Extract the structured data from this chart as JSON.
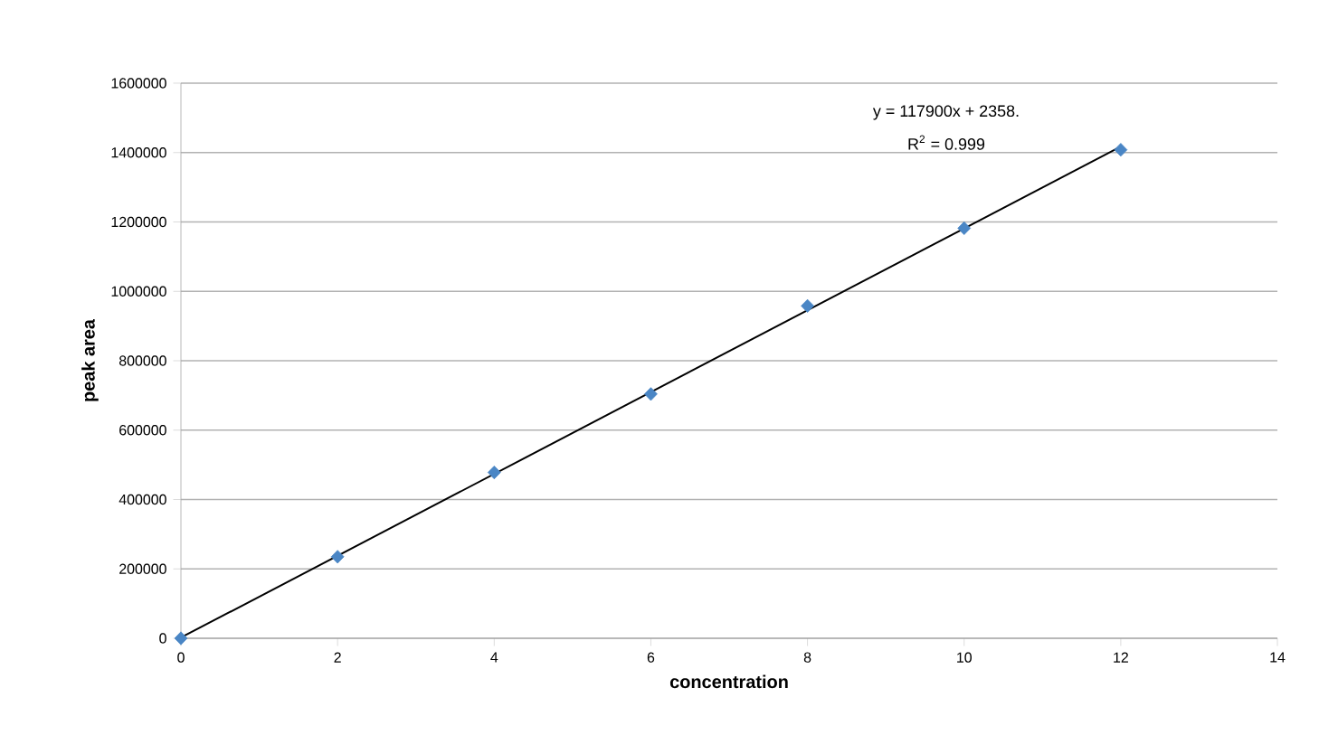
{
  "chart_data": {
    "type": "scatter",
    "xlabel": "concentration",
    "ylabel": "peak area",
    "series": [
      {
        "marker": "diamond",
        "color": "#4a86c5",
        "x": [
          0,
          2,
          4,
          6,
          8,
          10,
          12
        ],
        "values": [
          0,
          235000,
          478000,
          704000,
          958000,
          1182000,
          1408000
        ]
      },
      {
        "type": "line",
        "marker": "none",
        "color": "#000000",
        "x": [
          0,
          12
        ],
        "values": [
          2000,
          1417000
        ]
      }
    ],
    "xlim": [
      0,
      14
    ],
    "xticks": [
      0,
      2,
      4,
      6,
      8,
      10,
      12,
      14
    ],
    "ylim": [
      0,
      1600000
    ],
    "yticks": [
      0,
      200000,
      400000,
      600000,
      800000,
      1000000,
      1200000,
      1400000,
      1600000
    ],
    "grid": "y",
    "line_style": "solid",
    "annotations": [
      "y = 117900x + 2358.",
      "R$^{2}$ = 0.999"
    ]
  }
}
